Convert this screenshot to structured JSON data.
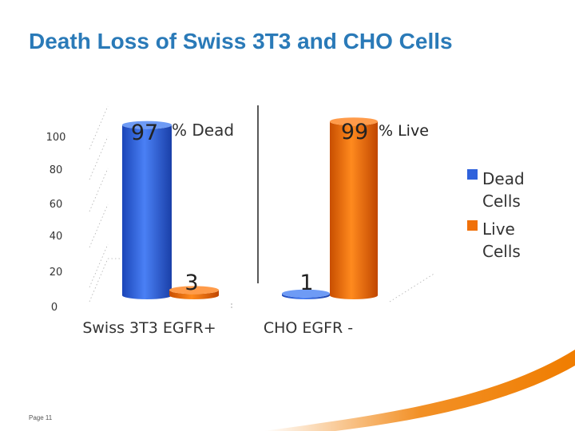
{
  "slide": {
    "title": "Death Loss of Swiss 3T3 and CHO Cells",
    "page_label": "Page 11",
    "accent_color": "#f07d00"
  },
  "chart_data": {
    "type": "bar",
    "title": "",
    "categories": [
      "Swiss 3T3 EGFR+",
      "CHO EGFR -"
    ],
    "series": [
      {
        "name": "Dead Cells",
        "values": [
          97,
          1
        ],
        "color": "#2f62dc"
      },
      {
        "name": "Live Cells",
        "values": [
          3,
          99
        ],
        "color": "#f0700a"
      }
    ],
    "data_labels": [
      "97",
      "3",
      "1",
      "99"
    ],
    "annotations": [
      "% Dead",
      "% Live"
    ],
    "yticks": [
      "0",
      "20",
      "40",
      "60",
      "80",
      "100"
    ],
    "ylim": [
      0,
      100
    ],
    "xlabel": "",
    "ylabel": "",
    "legend_position": "right",
    "three_d": true
  }
}
